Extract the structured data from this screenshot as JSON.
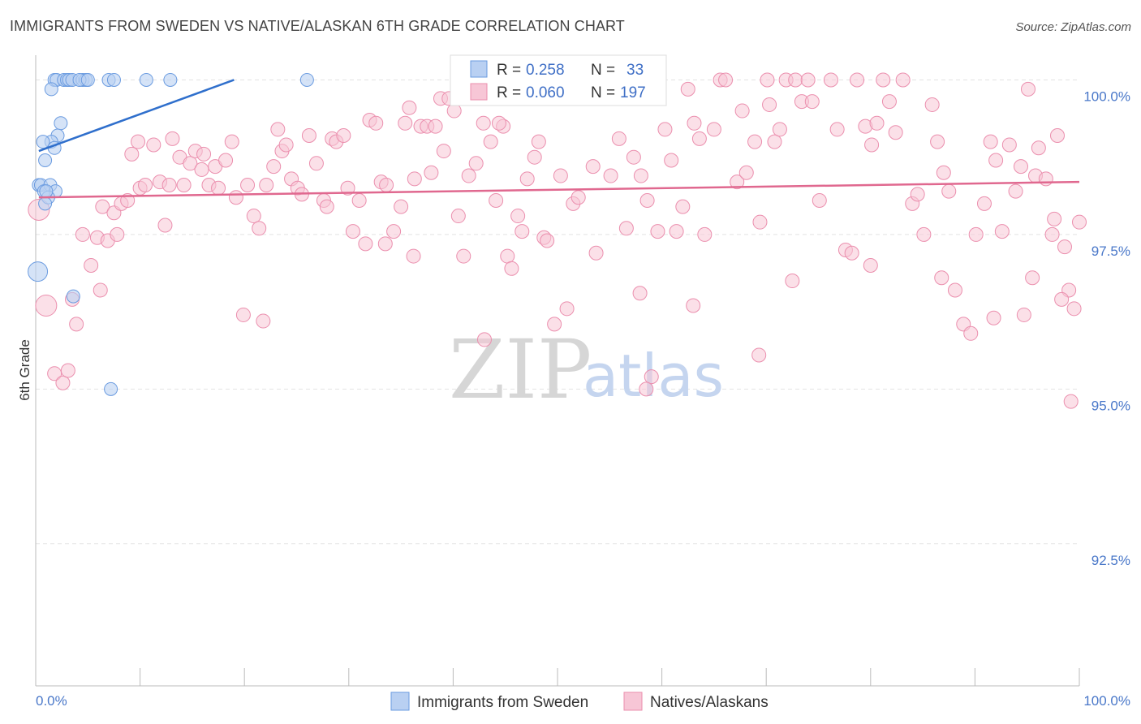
{
  "header": {
    "title": "IMMIGRANTS FROM SWEDEN VS NATIVE/ALASKAN 6TH GRADE CORRELATION CHART",
    "source": "Source: ZipAtlas.com"
  },
  "watermark": {
    "zip": "ZIP",
    "atlas": "atlas"
  },
  "stats": {
    "r_label": "R =",
    "n_label": "N =",
    "blue": {
      "r": "0.258",
      "n": "33"
    },
    "pink": {
      "r": "0.060",
      "n": "197"
    }
  },
  "colors": {
    "blue": "#6a9be0",
    "blue_line": "#2f6fcc",
    "pink": "#eb8fae",
    "pink_line": "#e0688f",
    "tick": "#4a78c9"
  },
  "chart_data": {
    "type": "scatter",
    "title": "IMMIGRANTS FROM SWEDEN VS NATIVE/ALASKAN 6TH GRADE CORRELATION CHART",
    "xlabel": "",
    "ylabel": "6th Grade",
    "xlim": [
      0,
      100
    ],
    "ylim": [
      90.2,
      100.4
    ],
    "x_tick_labels": [
      "0.0%",
      "100.0%"
    ],
    "y_ticks": [
      {
        "value": 100.0,
        "label": "100.0%"
      },
      {
        "value": 97.5,
        "label": "97.5%"
      },
      {
        "value": 95.0,
        "label": "95.0%"
      },
      {
        "value": 92.5,
        "label": "92.5%"
      }
    ],
    "grid": true,
    "legend_position": "bottom-center",
    "series": [
      {
        "name": "Immigrants from Sweden",
        "color": "#6a9be0",
        "trend": {
          "x": [
            0.3,
            19.0
          ],
          "y": [
            98.85,
            100.0
          ]
        },
        "points": [
          [
            1.8,
            100.0
          ],
          [
            2.0,
            100.0
          ],
          [
            2.7,
            100.0
          ],
          [
            3.0,
            100.0
          ],
          [
            3.2,
            100.0
          ],
          [
            3.5,
            100.0
          ],
          [
            4.5,
            100.0
          ],
          [
            4.8,
            100.0
          ],
          [
            7.0,
            100.0
          ],
          [
            7.5,
            100.0
          ],
          [
            10.6,
            100.0
          ],
          [
            12.9,
            100.0
          ],
          [
            26.0,
            100.0
          ],
          [
            4.2,
            100.0
          ],
          [
            5.0,
            100.0
          ],
          [
            1.5,
            99.85
          ],
          [
            2.4,
            99.3
          ],
          [
            2.1,
            99.1
          ],
          [
            1.5,
            99.0
          ],
          [
            0.7,
            99.0
          ],
          [
            1.8,
            98.9
          ],
          [
            0.9,
            98.7
          ],
          [
            0.3,
            98.3
          ],
          [
            0.5,
            98.3
          ],
          [
            1.4,
            98.3
          ],
          [
            0.8,
            98.2
          ],
          [
            1.9,
            98.2
          ],
          [
            1.2,
            98.1
          ],
          [
            0.9,
            98.0
          ],
          [
            0.2,
            96.9
          ],
          [
            3.6,
            96.5
          ],
          [
            7.2,
            95.0
          ],
          [
            1.0,
            98.2
          ]
        ]
      },
      {
        "name": "Natives/Alaskans",
        "color": "#eb8fae",
        "trend": {
          "x": [
            0.3,
            100.0
          ],
          "y": [
            98.1,
            98.35
          ]
        },
        "points": [
          [
            0.3,
            97.9
          ],
          [
            1.0,
            96.35
          ],
          [
            1.8,
            95.25
          ],
          [
            2.6,
            95.1
          ],
          [
            3.1,
            95.3
          ],
          [
            3.5,
            96.45
          ],
          [
            3.9,
            96.05
          ],
          [
            4.5,
            97.5
          ],
          [
            5.3,
            97.0
          ],
          [
            5.9,
            97.45
          ],
          [
            6.2,
            96.6
          ],
          [
            6.4,
            97.95
          ],
          [
            6.9,
            97.4
          ],
          [
            7.5,
            97.85
          ],
          [
            7.8,
            97.5
          ],
          [
            8.2,
            98.0
          ],
          [
            8.8,
            98.05
          ],
          [
            9.2,
            98.8
          ],
          [
            9.8,
            99.0
          ],
          [
            10.0,
            98.25
          ],
          [
            10.5,
            98.3
          ],
          [
            11.3,
            98.95
          ],
          [
            11.9,
            98.35
          ],
          [
            12.4,
            97.65
          ],
          [
            12.8,
            98.3
          ],
          [
            13.1,
            99.05
          ],
          [
            13.8,
            98.75
          ],
          [
            14.2,
            98.3
          ],
          [
            14.8,
            98.65
          ],
          [
            15.3,
            98.85
          ],
          [
            15.9,
            98.55
          ],
          [
            16.1,
            98.8
          ],
          [
            16.6,
            98.3
          ],
          [
            17.2,
            98.6
          ],
          [
            17.5,
            98.25
          ],
          [
            18.2,
            98.7
          ],
          [
            18.8,
            99.0
          ],
          [
            19.2,
            98.1
          ],
          [
            19.9,
            96.2
          ],
          [
            20.3,
            98.3
          ],
          [
            20.9,
            97.8
          ],
          [
            21.4,
            97.6
          ],
          [
            22.1,
            98.3
          ],
          [
            22.8,
            98.6
          ],
          [
            23.2,
            99.2
          ],
          [
            23.6,
            98.85
          ],
          [
            24.0,
            98.95
          ],
          [
            24.5,
            98.4
          ],
          [
            25.1,
            98.25
          ],
          [
            25.5,
            98.15
          ],
          [
            26.2,
            99.1
          ],
          [
            26.9,
            98.65
          ],
          [
            27.6,
            98.05
          ],
          [
            27.9,
            97.95
          ],
          [
            28.4,
            99.05
          ],
          [
            28.8,
            99.0
          ],
          [
            29.5,
            99.1
          ],
          [
            29.9,
            98.25
          ],
          [
            30.4,
            97.55
          ],
          [
            31.0,
            98.05
          ],
          [
            31.6,
            97.35
          ],
          [
            32.0,
            99.35
          ],
          [
            32.6,
            99.3
          ],
          [
            33.1,
            98.35
          ],
          [
            33.6,
            98.3
          ],
          [
            34.3,
            97.55
          ],
          [
            35.0,
            97.95
          ],
          [
            35.4,
            99.3
          ],
          [
            35.8,
            99.55
          ],
          [
            36.3,
            98.4
          ],
          [
            36.9,
            99.25
          ],
          [
            37.5,
            99.25
          ],
          [
            37.9,
            98.5
          ],
          [
            38.3,
            99.25
          ],
          [
            38.8,
            99.7
          ],
          [
            39.1,
            98.85
          ],
          [
            39.6,
            99.7
          ],
          [
            40.1,
            99.5
          ],
          [
            40.5,
            97.8
          ],
          [
            41.0,
            97.15
          ],
          [
            41.5,
            98.45
          ],
          [
            42.2,
            98.65
          ],
          [
            42.9,
            99.3
          ],
          [
            43.6,
            99.0
          ],
          [
            44.1,
            98.05
          ],
          [
            44.8,
            99.25
          ],
          [
            45.2,
            97.15
          ],
          [
            45.6,
            96.95
          ],
          [
            46.2,
            97.8
          ],
          [
            46.6,
            97.55
          ],
          [
            47.1,
            98.4
          ],
          [
            47.8,
            98.75
          ],
          [
            48.2,
            99.0
          ],
          [
            48.7,
            97.45
          ],
          [
            49.0,
            97.4
          ],
          [
            49.7,
            96.05
          ],
          [
            50.3,
            98.45
          ],
          [
            50.9,
            96.3
          ],
          [
            51.5,
            98.0
          ],
          [
            52.0,
            98.1
          ],
          [
            52.6,
            99.85
          ],
          [
            53.4,
            98.6
          ],
          [
            53.7,
            97.2
          ],
          [
            55.1,
            98.45
          ],
          [
            55.9,
            99.05
          ],
          [
            56.6,
            97.6
          ],
          [
            57.3,
            98.75
          ],
          [
            58.0,
            98.45
          ],
          [
            58.6,
            98.05
          ],
          [
            59.6,
            97.55
          ],
          [
            60.3,
            99.2
          ],
          [
            60.9,
            98.7
          ],
          [
            61.4,
            97.55
          ],
          [
            62.0,
            97.95
          ],
          [
            62.5,
            99.85
          ],
          [
            63.1,
            99.3
          ],
          [
            63.6,
            99.05
          ],
          [
            64.1,
            97.5
          ],
          [
            65.0,
            99.2
          ],
          [
            65.6,
            100.0
          ],
          [
            66.1,
            100.0
          ],
          [
            67.2,
            98.35
          ],
          [
            67.7,
            99.5
          ],
          [
            68.1,
            98.5
          ],
          [
            68.9,
            99.0
          ],
          [
            69.4,
            97.7
          ],
          [
            70.1,
            100.0
          ],
          [
            70.3,
            99.6
          ],
          [
            70.8,
            99.0
          ],
          [
            71.3,
            99.2
          ],
          [
            71.9,
            100.0
          ],
          [
            72.8,
            100.0
          ],
          [
            73.4,
            99.65
          ],
          [
            74.0,
            100.0
          ],
          [
            74.4,
            99.65
          ],
          [
            75.1,
            98.05
          ],
          [
            76.2,
            100.0
          ],
          [
            76.8,
            99.2
          ],
          [
            77.6,
            97.25
          ],
          [
            78.2,
            97.2
          ],
          [
            78.7,
            100.0
          ],
          [
            79.5,
            99.25
          ],
          [
            80.1,
            98.95
          ],
          [
            80.6,
            99.3
          ],
          [
            81.2,
            100.0
          ],
          [
            81.8,
            99.65
          ],
          [
            82.4,
            99.15
          ],
          [
            83.1,
            100.0
          ],
          [
            84.0,
            98.0
          ],
          [
            84.5,
            98.15
          ],
          [
            85.1,
            97.5
          ],
          [
            85.9,
            99.6
          ],
          [
            86.4,
            99.0
          ],
          [
            87.0,
            98.5
          ],
          [
            87.5,
            98.2
          ],
          [
            88.1,
            96.6
          ],
          [
            88.9,
            96.05
          ],
          [
            89.6,
            95.9
          ],
          [
            90.1,
            97.5
          ],
          [
            90.9,
            98.0
          ],
          [
            91.5,
            99.0
          ],
          [
            92.0,
            98.7
          ],
          [
            92.6,
            97.55
          ],
          [
            93.3,
            98.95
          ],
          [
            93.9,
            98.2
          ],
          [
            94.4,
            98.6
          ],
          [
            95.1,
            99.85
          ],
          [
            95.8,
            98.45
          ],
          [
            96.1,
            98.9
          ],
          [
            96.8,
            98.4
          ],
          [
            97.4,
            97.5
          ],
          [
            97.9,
            99.1
          ],
          [
            98.6,
            97.3
          ],
          [
            99.0,
            96.6
          ],
          [
            99.5,
            96.3
          ],
          [
            100.0,
            97.7
          ],
          [
            33.5,
            97.35
          ],
          [
            44.4,
            99.3
          ],
          [
            57.9,
            96.55
          ],
          [
            69.3,
            95.55
          ],
          [
            86.8,
            96.8
          ],
          [
            36.2,
            97.15
          ],
          [
            21.8,
            96.1
          ],
          [
            43.0,
            95.8
          ],
          [
            59.0,
            95.2
          ],
          [
            63.0,
            96.35
          ],
          [
            72.5,
            96.75
          ],
          [
            80.0,
            97.0
          ],
          [
            91.8,
            96.15
          ],
          [
            94.7,
            96.2
          ],
          [
            97.6,
            97.75
          ],
          [
            95.5,
            96.8
          ],
          [
            98.3,
            96.45
          ],
          [
            99.2,
            94.8
          ],
          [
            58.5,
            95.0
          ]
        ]
      }
    ]
  },
  "legend": {
    "blue_label": "Immigrants from Sweden",
    "pink_label": "Natives/Alaskans"
  }
}
